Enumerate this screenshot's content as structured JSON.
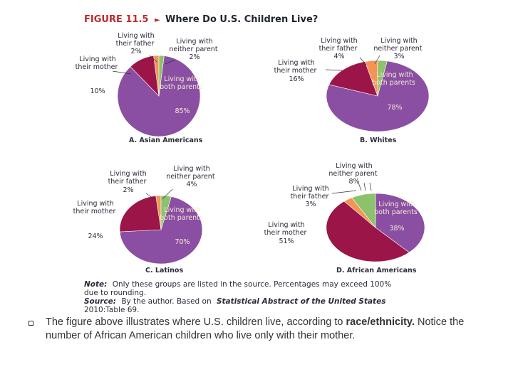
{
  "figure": {
    "label": "FIGURE 11.5",
    "arrow": "►",
    "title": "Where Do U.S. Children Live?"
  },
  "colors": {
    "both": "#8a4fa3",
    "mother": "#9c1548",
    "father": "#f39455",
    "neither": "#8cc26c",
    "light_text": "#f2ead0"
  },
  "chart_data": [
    {
      "type": "pie",
      "title": "A. Asian Americans",
      "labels": [
        "Living with both parents",
        "Living with their mother",
        "Living with their father",
        "Living with neither parent"
      ],
      "values": [
        85,
        10,
        2,
        2
      ]
    },
    {
      "type": "pie",
      "title": "B. Whites",
      "labels": [
        "Living with both parents",
        "Living with their mother",
        "Living with their father",
        "Living with neither parent"
      ],
      "values": [
        78,
        16,
        4,
        3
      ]
    },
    {
      "type": "pie",
      "title": "C. Latinos",
      "labels": [
        "Living with both parents",
        "Living with their mother",
        "Living with their father",
        "Living with neither parent"
      ],
      "values": [
        70,
        24,
        2,
        4
      ]
    },
    {
      "type": "pie",
      "title": "D. African Americans",
      "labels": [
        "Living with both parents",
        "Living with their mother",
        "Living with their father",
        "Living with neither parent"
      ],
      "values": [
        38,
        51,
        3,
        8
      ]
    }
  ],
  "note": {
    "note_label": "Note:",
    "note_text_1": "Only these groups are listed in the source. Percentages may exceed 100%",
    "note_text_2": "due to rounding.",
    "source_label": "Source:",
    "source_text": "By the author. Based on",
    "source_title": "Statistical Abstract of the United States",
    "source_ref": "2010:Table 69."
  },
  "body": {
    "text_1": "The figure above illustrates where U.S. children live, according to ",
    "emphasis": "race/ethnicity.",
    "text_2": "  Notice the number of African American children who live only with their mother."
  }
}
